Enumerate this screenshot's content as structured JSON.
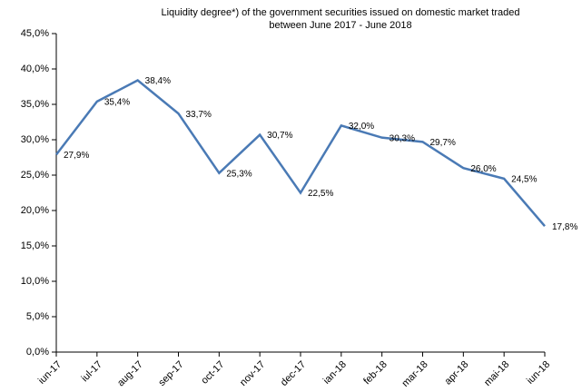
{
  "chart_data": {
    "type": "line",
    "title": [
      "Liquidity degree*) of the government securities issued on domestic market traded",
      "between June 2017 - June 2018"
    ],
    "categories": [
      "iun-17",
      "iul-17",
      "aug-17",
      "sep-17",
      "oct-17",
      "nov-17",
      "dec-17",
      "ian-18",
      "feb-18",
      "mar-18",
      "apr-18",
      "mai-18",
      "iun-18"
    ],
    "series": [
      {
        "color": "#4a7ab5",
        "values": [
          27.9,
          35.4,
          38.4,
          33.7,
          25.3,
          30.7,
          22.5,
          32.0,
          30.3,
          29.7,
          26.0,
          24.5,
          17.8
        ],
        "value_labels": [
          "27,9%",
          "35,4%",
          "38,4%",
          "33,7%",
          "25,3%",
          "30,7%",
          "22,5%",
          "32,0%",
          "30,3%",
          "29,7%",
          "26,0%",
          "24,5%",
          "17,8%"
        ]
      }
    ],
    "ylim": [
      0,
      45
    ],
    "yticks": [
      {
        "value": 0,
        "label": "0,0%"
      },
      {
        "value": 5,
        "label": "5,0%"
      },
      {
        "value": 10,
        "label": "10,0%"
      },
      {
        "value": 15,
        "label": "15,0%"
      },
      {
        "value": 20,
        "label": "20,0%"
      },
      {
        "value": 25,
        "label": "25,0%"
      },
      {
        "value": 30,
        "label": "30,0%"
      },
      {
        "value": 35,
        "label": "35,0%"
      },
      {
        "value": 40,
        "label": "40,0%"
      },
      {
        "value": 45,
        "label": "45,0%"
      }
    ]
  }
}
